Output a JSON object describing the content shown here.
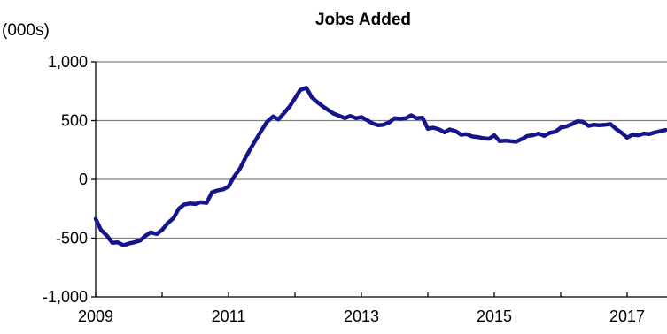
{
  "chart_data": {
    "type": "line",
    "title": "Jobs Added",
    "unit_label": "(000s)",
    "xlabel": "",
    "ylabel": "",
    "xlim": [
      2009,
      2017.6
    ],
    "ylim": [
      -1000,
      1000
    ],
    "x_ticks": [
      2009,
      2011,
      2013,
      2015,
      2017
    ],
    "x_tick_labels": [
      "2009",
      "2011",
      "2013",
      "2015",
      "2017"
    ],
    "y_ticks": [
      -1000,
      -500,
      0,
      500,
      1000
    ],
    "y_tick_labels": [
      "-1,000",
      "-500",
      "0",
      "500",
      "1,000"
    ],
    "grid": "horizontal",
    "legend": "none",
    "series": [
      {
        "color": "#14148c",
        "points": [
          [
            2009.0,
            -335
          ],
          [
            2009.08,
            -430
          ],
          [
            2009.17,
            -480
          ],
          [
            2009.25,
            -540
          ],
          [
            2009.33,
            -535
          ],
          [
            2009.42,
            -560
          ],
          [
            2009.5,
            -545
          ],
          [
            2009.58,
            -535
          ],
          [
            2009.67,
            -520
          ],
          [
            2009.75,
            -480
          ],
          [
            2009.83,
            -450
          ],
          [
            2009.92,
            -465
          ],
          [
            2010.0,
            -430
          ],
          [
            2010.08,
            -375
          ],
          [
            2010.17,
            -330
          ],
          [
            2010.25,
            -250
          ],
          [
            2010.33,
            -215
          ],
          [
            2010.42,
            -205
          ],
          [
            2010.5,
            -210
          ],
          [
            2010.58,
            -195
          ],
          [
            2010.67,
            -200
          ],
          [
            2010.75,
            -110
          ],
          [
            2010.83,
            -95
          ],
          [
            2010.92,
            -85
          ],
          [
            2011.0,
            -60
          ],
          [
            2011.08,
            20
          ],
          [
            2011.17,
            90
          ],
          [
            2011.25,
            180
          ],
          [
            2011.33,
            260
          ],
          [
            2011.42,
            345
          ],
          [
            2011.5,
            420
          ],
          [
            2011.58,
            490
          ],
          [
            2011.67,
            535
          ],
          [
            2011.75,
            510
          ],
          [
            2011.83,
            560
          ],
          [
            2011.92,
            620
          ],
          [
            2012.0,
            690
          ],
          [
            2012.08,
            760
          ],
          [
            2012.17,
            780
          ],
          [
            2012.25,
            700
          ],
          [
            2012.33,
            660
          ],
          [
            2012.42,
            620
          ],
          [
            2012.5,
            590
          ],
          [
            2012.58,
            560
          ],
          [
            2012.67,
            540
          ],
          [
            2012.75,
            520
          ],
          [
            2012.83,
            540
          ],
          [
            2012.92,
            520
          ],
          [
            2013.0,
            530
          ],
          [
            2013.08,
            505
          ],
          [
            2013.17,
            475
          ],
          [
            2013.25,
            460
          ],
          [
            2013.33,
            465
          ],
          [
            2013.42,
            485
          ],
          [
            2013.5,
            520
          ],
          [
            2013.58,
            515
          ],
          [
            2013.67,
            520
          ],
          [
            2013.75,
            545
          ],
          [
            2013.83,
            520
          ],
          [
            2013.92,
            525
          ],
          [
            2014.0,
            430
          ],
          [
            2014.08,
            440
          ],
          [
            2014.17,
            425
          ],
          [
            2014.25,
            400
          ],
          [
            2014.33,
            425
          ],
          [
            2014.42,
            410
          ],
          [
            2014.5,
            380
          ],
          [
            2014.58,
            385
          ],
          [
            2014.67,
            365
          ],
          [
            2014.75,
            360
          ],
          [
            2014.83,
            350
          ],
          [
            2014.92,
            345
          ],
          [
            2015.0,
            375
          ],
          [
            2015.08,
            325
          ],
          [
            2015.17,
            330
          ],
          [
            2015.25,
            325
          ],
          [
            2015.33,
            320
          ],
          [
            2015.42,
            345
          ],
          [
            2015.5,
            370
          ],
          [
            2015.58,
            375
          ],
          [
            2015.67,
            390
          ],
          [
            2015.75,
            370
          ],
          [
            2015.83,
            395
          ],
          [
            2015.92,
            405
          ],
          [
            2016.0,
            440
          ],
          [
            2016.08,
            450
          ],
          [
            2016.17,
            470
          ],
          [
            2016.25,
            495
          ],
          [
            2016.33,
            490
          ],
          [
            2016.42,
            455
          ],
          [
            2016.5,
            465
          ],
          [
            2016.58,
            460
          ],
          [
            2016.67,
            465
          ],
          [
            2016.75,
            470
          ],
          [
            2016.83,
            430
          ],
          [
            2016.92,
            395
          ],
          [
            2017.0,
            355
          ],
          [
            2017.08,
            380
          ],
          [
            2017.17,
            375
          ],
          [
            2017.25,
            390
          ],
          [
            2017.33,
            385
          ],
          [
            2017.42,
            400
          ],
          [
            2017.5,
            410
          ],
          [
            2017.58,
            420
          ]
        ]
      }
    ]
  },
  "colors": {
    "line": "#14148c",
    "axis": "#000000",
    "grid": "#7f7f7f",
    "background": "#ffffff"
  }
}
